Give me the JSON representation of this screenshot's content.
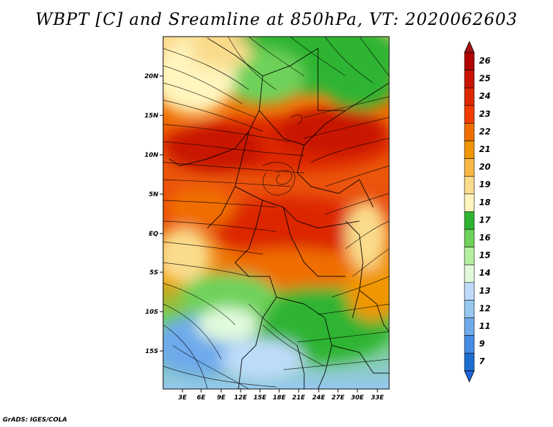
{
  "title": "WBPT [C] and Sreamline at 850hPa, VT: 2020062603",
  "footer": "GrADS: IGES/COLA",
  "map": {
    "lat_labels": [
      "20N",
      "15N",
      "10N",
      "5N",
      "EQ",
      "5S",
      "10S",
      "15S"
    ],
    "lon_labels": [
      "3E",
      "6E",
      "9E",
      "12E",
      "15E",
      "18E",
      "21E",
      "24E",
      "27E",
      "30E",
      "33E"
    ]
  },
  "colorbar": {
    "labels": [
      "26",
      "25",
      "24",
      "23",
      "22",
      "21",
      "20",
      "19",
      "18",
      "17",
      "16",
      "15",
      "14",
      "13",
      "12",
      "11",
      "9",
      "7"
    ],
    "colors": [
      "#b00000",
      "#c81400",
      "#dc2800",
      "#f03c00",
      "#f06e00",
      "#f09600",
      "#fab946",
      "#fadc8c",
      "#fff5be",
      "#2eb432",
      "#6ed25a",
      "#b4f0a0",
      "#e1fadc",
      "#bedcfa",
      "#96c8f0",
      "#6eaaeb",
      "#468ce6",
      "#1e6ed2"
    ],
    "top_color": "#a01414",
    "bottom_color": "#1e64dc"
  }
}
